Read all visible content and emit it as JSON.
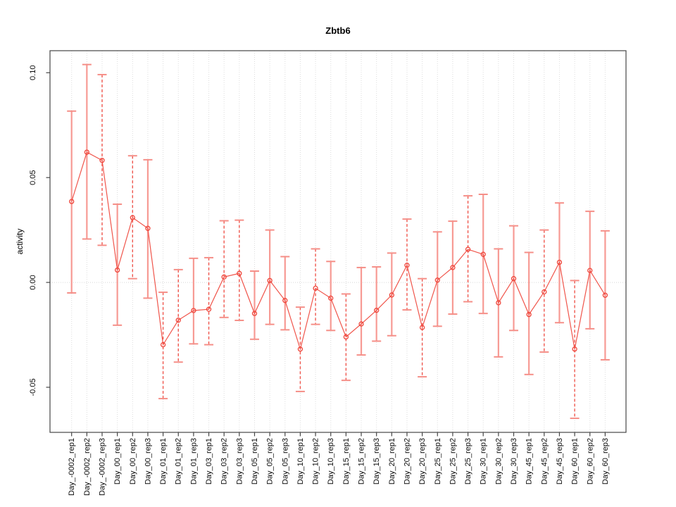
{
  "chart_data": {
    "type": "line",
    "title": "Zbtb6",
    "xlabel": "",
    "ylabel": "activity",
    "categories": [
      "Day_-0002_rep1",
      "Day_-0002_rep2",
      "Day_-0002_rep3",
      "Day_00_rep1",
      "Day_00_rep2",
      "Day_00_rep3",
      "Day_01_rep1",
      "Day_01_rep2",
      "Day_01_rep3",
      "Day_03_rep1",
      "Day_03_rep2",
      "Day_03_rep3",
      "Day_05_rep1",
      "Day_05_rep2",
      "Day_05_rep3",
      "Day_10_rep1",
      "Day_10_rep2",
      "Day_10_rep3",
      "Day_15_rep1",
      "Day_15_rep2",
      "Day_15_rep3",
      "Day_20_rep1",
      "Day_20_rep2",
      "Day_20_rep3",
      "Day_25_rep1",
      "Day_25_rep2",
      "Day_25_rep3",
      "Day_30_rep1",
      "Day_30_rep2",
      "Day_30_rep3",
      "Day_45_rep1",
      "Day_45_rep2",
      "Day_45_rep3",
      "Day_60_rep1",
      "Day_60_rep2",
      "Day_60_rep3"
    ],
    "series": [
      {
        "name": "activity",
        "values": [
          0.0386,
          0.0621,
          0.0582,
          0.0059,
          0.0309,
          0.0258,
          -0.0297,
          -0.018,
          -0.0134,
          -0.0128,
          0.0026,
          0.0043,
          -0.0148,
          0.0009,
          -0.0086,
          -0.0318,
          -0.0028,
          -0.0075,
          -0.026,
          -0.0198,
          -0.0133,
          -0.006,
          0.0082,
          -0.0215,
          0.0011,
          0.0071,
          0.0158,
          0.0134,
          -0.0097,
          0.0018,
          -0.0153,
          -0.0045,
          0.0096,
          -0.0318,
          0.0057,
          -0.0061
        ],
        "error_high": [
          0.0817,
          0.1039,
          0.0991,
          0.0373,
          0.0604,
          0.0585,
          -0.0047,
          0.0061,
          0.0115,
          0.0118,
          0.0294,
          0.0297,
          0.0054,
          0.025,
          0.0123,
          -0.0118,
          0.016,
          0.01,
          -0.0055,
          0.0071,
          0.0074,
          0.014,
          0.0302,
          0.0018,
          0.0241,
          0.0292,
          0.0413,
          0.042,
          0.016,
          0.027,
          0.0143,
          0.025,
          0.0379,
          0.0009,
          0.0339,
          0.0246
        ],
        "error_low": [
          -0.005,
          0.0207,
          0.0177,
          -0.0204,
          0.0018,
          -0.0075,
          -0.0554,
          -0.038,
          -0.0293,
          -0.0297,
          -0.0167,
          -0.0181,
          -0.0271,
          -0.02,
          -0.0226,
          -0.052,
          -0.02,
          -0.0229,
          -0.0467,
          -0.0346,
          -0.028,
          -0.0254,
          -0.0131,
          -0.045,
          -0.0209,
          -0.0151,
          -0.0092,
          -0.0148,
          -0.0355,
          -0.0229,
          -0.0439,
          -0.0332,
          -0.0192,
          -0.0648,
          -0.0221,
          -0.0369
        ]
      }
    ],
    "bar_styles": [
      "solid",
      "solid",
      "dashed",
      "solid",
      "dashed",
      "solid",
      "dashed",
      "dashed",
      "solid",
      "dashed",
      "dashed",
      "dashed",
      "solid",
      "solid",
      "solid",
      "dashed",
      "dashed",
      "solid",
      "dashed",
      "solid",
      "solid",
      "solid",
      "dashed",
      "dashed",
      "solid",
      "solid",
      "dashed",
      "solid",
      "solid",
      "solid",
      "solid",
      "dashed",
      "solid",
      "dashed",
      "solid",
      "solid"
    ],
    "yticks": [
      -0.05,
      0.0,
      0.05,
      0.1
    ],
    "ytick_labels": [
      "-0.05",
      "0.00",
      "0.05",
      "0.10"
    ],
    "ylim": [
      -0.0715,
      0.1105
    ],
    "grid": {
      "vertical": "dotted line at every category",
      "horizontal": "dotted line at zero only"
    },
    "legend": "none",
    "marker": "open-circle",
    "colors": {
      "point": "#ef453a",
      "line": "#f0554b",
      "error_solid": "#f79a94",
      "error_dashed": "#f0564d",
      "cap": "#f58f88",
      "grid": "#dcdcdc",
      "zero_line": "#d8d8d8",
      "axis": "#454545",
      "text": "#0a0a0a",
      "background": "#ffffff"
    }
  }
}
